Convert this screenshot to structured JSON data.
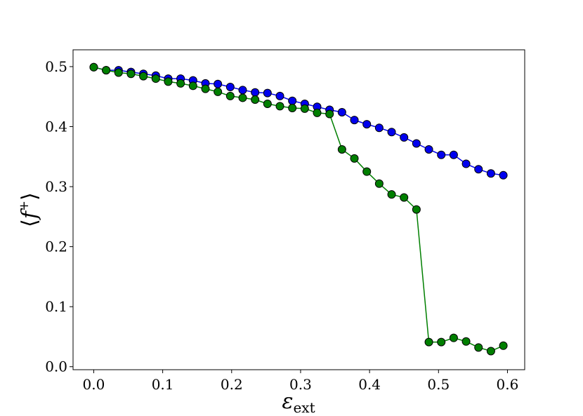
{
  "chart_data": {
    "type": "line",
    "xlabel_main": "ε",
    "xlabel_sub": "ext",
    "ylabel_left": "⟨",
    "ylabel_f": "f",
    "ylabel_sup": "+",
    "ylabel_right": "⟩",
    "xlim": [
      -0.03,
      0.625
    ],
    "ylim": [
      -0.005,
      0.528
    ],
    "xticks": [
      0.0,
      0.1,
      0.2,
      0.3,
      0.4,
      0.5,
      0.6
    ],
    "xtick_labels": [
      "0.0",
      "0.1",
      "0.2",
      "0.3",
      "0.4",
      "0.5",
      "0.6"
    ],
    "yticks": [
      0.0,
      0.1,
      0.2,
      0.3,
      0.4,
      0.5
    ],
    "ytick_labels": [
      "0.0",
      "0.1",
      "0.2",
      "0.3",
      "0.4",
      "0.5"
    ],
    "grid": false,
    "x": [
      0.0,
      0.018,
      0.036,
      0.054,
      0.072,
      0.09,
      0.108,
      0.126,
      0.144,
      0.162,
      0.18,
      0.198,
      0.216,
      0.234,
      0.252,
      0.27,
      0.288,
      0.306,
      0.324,
      0.342,
      0.36,
      0.378,
      0.396,
      0.414,
      0.432,
      0.45,
      0.468,
      0.486,
      0.504,
      0.522,
      0.54,
      0.558,
      0.576,
      0.594
    ],
    "series": [
      {
        "color": "#0000ee",
        "values": [
          0.499,
          0.494,
          0.494,
          0.491,
          0.488,
          0.485,
          0.48,
          0.48,
          0.477,
          0.472,
          0.471,
          0.466,
          0.461,
          0.457,
          0.456,
          0.451,
          0.443,
          0.438,
          0.433,
          0.428,
          0.424,
          0.411,
          0.404,
          0.398,
          0.391,
          0.382,
          0.372,
          0.362,
          0.353,
          0.353,
          0.338,
          0.329,
          0.322,
          0.319
        ]
      },
      {
        "color": "#007f00",
        "values": [
          0.499,
          0.494,
          0.49,
          0.488,
          0.484,
          0.48,
          0.475,
          0.472,
          0.468,
          0.463,
          0.458,
          0.451,
          0.448,
          0.445,
          0.438,
          0.434,
          0.431,
          0.43,
          0.423,
          0.421,
          0.362,
          0.347,
          0.325,
          0.305,
          0.287,
          0.282,
          0.262,
          0.041,
          0.041,
          0.048,
          0.042,
          0.032,
          0.026,
          0.035
        ]
      }
    ]
  }
}
